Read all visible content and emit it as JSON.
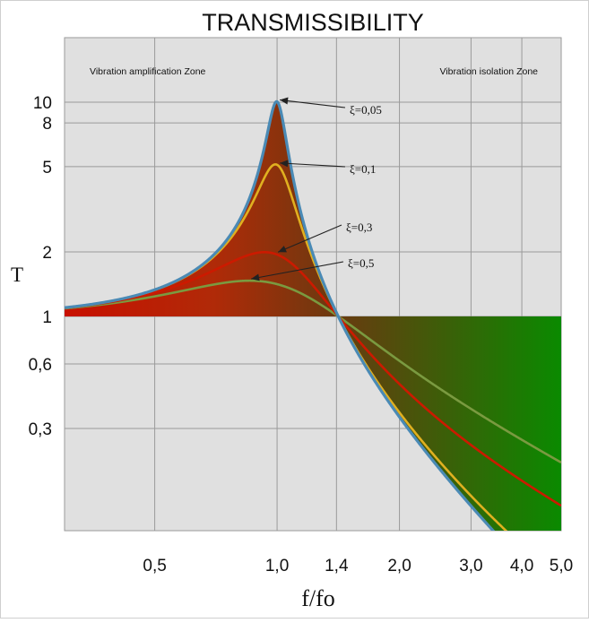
{
  "chart_data": {
    "type": "line",
    "title": "TRANSMISSIBILITY",
    "xlabel": "f/fo",
    "ylabel": "T",
    "x_scale": "log",
    "y_scale": "log",
    "xlim": [
      0.3,
      5.0
    ],
    "ylim": [
      0.1,
      20
    ],
    "x_ticks": [
      0.5,
      1.0,
      1.4,
      2.0,
      3.0,
      4.0,
      5.0
    ],
    "x_tick_labels": [
      "0,5",
      "1,0",
      "1,4",
      "2,0",
      "3,0",
      "4,0",
      "5,0"
    ],
    "y_ticks": [
      0.3,
      0.6,
      1,
      2,
      5,
      8,
      10
    ],
    "y_tick_labels": [
      "0,3",
      "0,6",
      "1",
      "2",
      "5",
      "8",
      "10"
    ],
    "grid": true,
    "zones": [
      {
        "label": "Vibration amplification Zone",
        "x_range": [
          0.3,
          1.4
        ],
        "color": "#c81000"
      },
      {
        "label": "Vibration isolation Zone",
        "x_range": [
          1.4,
          5.0
        ],
        "color": "#0a8a00"
      }
    ],
    "series": [
      {
        "name": "ξ=0,05",
        "damping": 0.05,
        "color": "#4a8ab5"
      },
      {
        "name": "ξ=0,1",
        "damping": 0.1,
        "color": "#e0b020"
      },
      {
        "name": "ξ=0,3",
        "damping": 0.3,
        "color": "#cc1a00"
      },
      {
        "name": "ξ=0,5",
        "damping": 0.5,
        "color": "#7a9a40"
      }
    ]
  }
}
